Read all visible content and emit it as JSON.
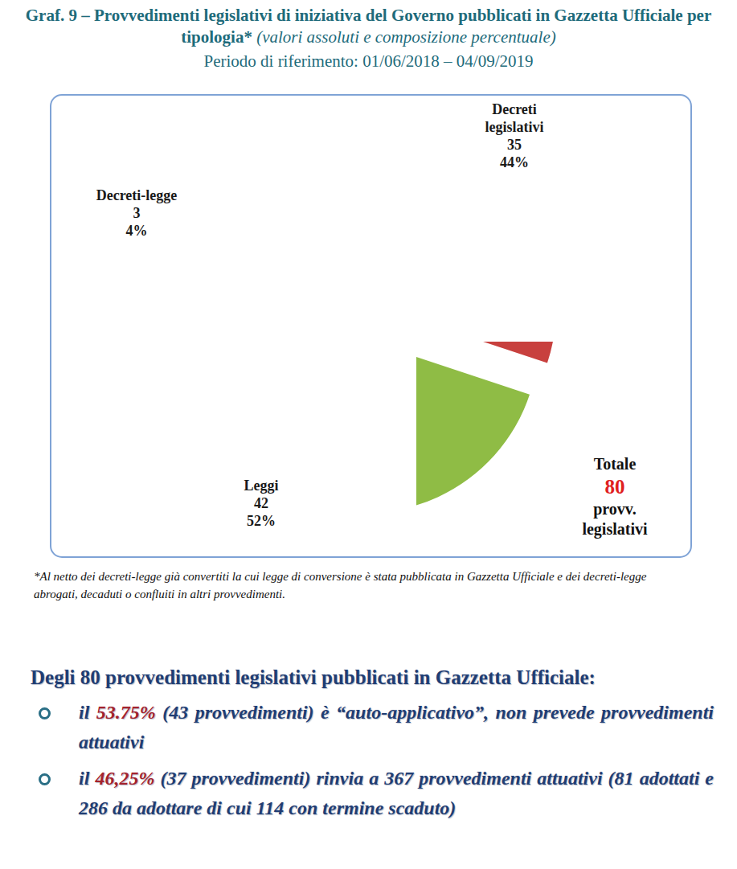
{
  "chart_data": {
    "type": "pie",
    "title": "Graf. 9 – Provvedimenti legislativi di iniziativa del Governo pubblicati in Gazzetta Ufficiale per tipologia*",
    "subtitle": "(valori assoluti e composizione percentuale)",
    "period": "Periodo di riferimento: 01/06/2018 – 04/09/2019",
    "categories": [
      "Decreti legislativi",
      "Leggi",
      "Decreti-legge"
    ],
    "values": [
      44,
      52,
      4
    ],
    "value_labels": [
      "44%",
      "52%",
      "4%"
    ],
    "counts": [
      35,
      42,
      3
    ],
    "colors": [
      "#C8403E",
      "#8FBC45",
      "#3A77C9"
    ],
    "data_labels": true,
    "total_label": "Totale",
    "total": 80,
    "total_unit": "provv. legislativi",
    "note": "*Al netto dei decreti-legge già convertiti la cui legge di conversione è stata pubblicata in Gazzetta Ufficiale e dei decreti-legge abrogati, decaduti o confluiti in altri provvedimenti."
  },
  "summary": {
    "heading": "Degli 80 provvedimenti legislativi pubblicati in Gazzetta Ufficiale:",
    "items": [
      {
        "before": "il",
        "highlight": "53.75%",
        "after": "(43 provvedimenti) è “auto-applicativo”, non prevede provvedimenti attuativi"
      },
      {
        "before": "il",
        "highlight": "46,25%",
        "after": "(37 provvedimenti) rinvia a 367 provvedimenti attuativi (81 adottati e 286 da adottare di cui 114 con termine scaduto)"
      }
    ]
  }
}
